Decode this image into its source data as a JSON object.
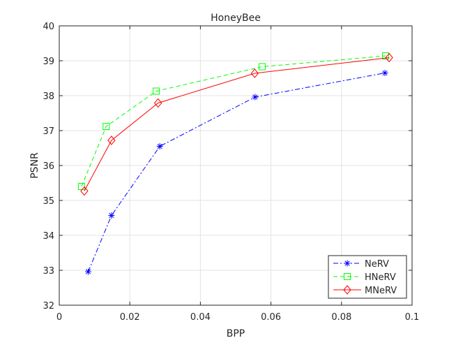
{
  "chart_data": {
    "type": "line",
    "title": "HoneyBee",
    "xlabel": "BPP",
    "ylabel": "PSNR",
    "xlim": [
      0,
      0.1
    ],
    "ylim": [
      32,
      40
    ],
    "xticks": [
      0,
      0.02,
      0.04,
      0.06,
      0.08,
      0.1
    ],
    "xtick_labels": [
      "0",
      "0.02",
      "0.04",
      "0.06",
      "0.08",
      "0.1"
    ],
    "yticks": [
      32,
      33,
      34,
      35,
      36,
      37,
      38,
      39,
      40
    ],
    "ytick_labels": [
      "32",
      "33",
      "34",
      "35",
      "36",
      "37",
      "38",
      "39",
      "40"
    ],
    "grid": true,
    "legend_position": "bottom-right",
    "series": [
      {
        "name": "NeRV",
        "color": "#0000ff",
        "line_style": "dash-dot",
        "marker": "asterisk",
        "x": [
          0.0082,
          0.0148,
          0.0285,
          0.0555,
          0.0923
        ],
        "y": [
          32.96,
          34.57,
          36.55,
          37.96,
          38.65
        ]
      },
      {
        "name": "HNeRV",
        "color": "#00ff00",
        "line_style": "dashed",
        "marker": "square",
        "x": [
          0.0063,
          0.0133,
          0.0275,
          0.0575,
          0.0925
        ],
        "y": [
          35.4,
          37.12,
          38.13,
          38.83,
          39.14
        ]
      },
      {
        "name": "MNeRV",
        "color": "#ff0000",
        "line_style": "solid",
        "marker": "diamond",
        "x": [
          0.0071,
          0.0148,
          0.028,
          0.0554,
          0.0935
        ],
        "y": [
          35.27,
          36.72,
          37.79,
          38.64,
          39.09
        ]
      }
    ]
  }
}
